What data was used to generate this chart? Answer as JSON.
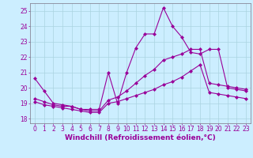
{
  "xlabel": "Windchill (Refroidissement éolien,°C)",
  "xlim": [
    -0.5,
    23.5
  ],
  "ylim": [
    17.7,
    25.5
  ],
  "xticks": [
    0,
    1,
    2,
    3,
    4,
    5,
    6,
    7,
    8,
    9,
    10,
    11,
    12,
    13,
    14,
    15,
    16,
    17,
    18,
    19,
    20,
    21,
    22,
    23
  ],
  "yticks": [
    18,
    19,
    20,
    21,
    22,
    23,
    24,
    25
  ],
  "bg_color": "#cceeff",
  "grid_color": "#aad4e0",
  "line_color": "#990099",
  "line1_x": [
    0,
    1,
    2,
    3,
    4,
    5,
    6,
    7,
    8,
    9,
    10,
    11,
    12,
    13,
    14,
    15,
    16,
    17,
    18,
    19,
    20,
    21,
    22,
    23
  ],
  "line1_y": [
    20.6,
    19.8,
    19.0,
    18.9,
    18.8,
    18.6,
    18.6,
    18.6,
    21.0,
    19.0,
    21.0,
    22.6,
    23.5,
    23.5,
    25.2,
    24.0,
    23.3,
    22.3,
    22.2,
    22.5,
    22.5,
    20.0,
    19.9,
    19.8
  ],
  "line2_x": [
    0,
    1,
    2,
    3,
    4,
    5,
    6,
    7,
    8,
    9,
    10,
    11,
    12,
    13,
    14,
    15,
    16,
    17,
    18,
    19,
    20,
    21,
    22,
    23
  ],
  "line2_y": [
    19.3,
    19.1,
    18.9,
    18.8,
    18.8,
    18.6,
    18.5,
    18.5,
    19.2,
    19.4,
    19.8,
    20.3,
    20.8,
    21.2,
    21.8,
    22.0,
    22.2,
    22.5,
    22.5,
    20.3,
    20.2,
    20.1,
    20.0,
    19.9
  ],
  "line3_x": [
    0,
    1,
    2,
    3,
    4,
    5,
    6,
    7,
    8,
    9,
    10,
    11,
    12,
    13,
    14,
    15,
    16,
    17,
    18,
    19,
    20,
    21,
    22,
    23
  ],
  "line3_y": [
    19.1,
    18.9,
    18.8,
    18.7,
    18.6,
    18.5,
    18.4,
    18.4,
    19.0,
    19.1,
    19.3,
    19.5,
    19.7,
    19.9,
    20.2,
    20.4,
    20.7,
    21.1,
    21.5,
    19.7,
    19.6,
    19.5,
    19.4,
    19.3
  ],
  "fontsize_label": 6.5,
  "fontsize_tick": 5.5
}
